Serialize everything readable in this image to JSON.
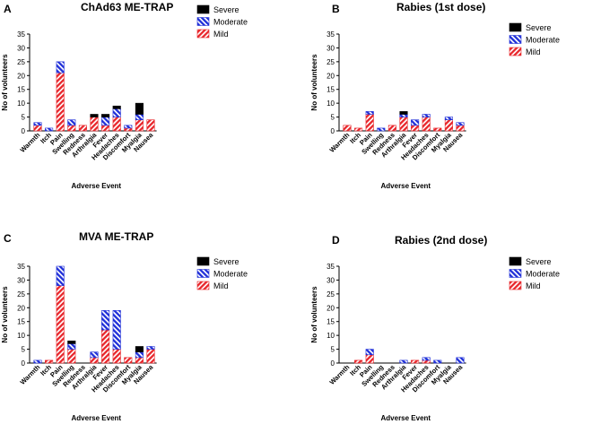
{
  "colors": {
    "severe": "#000000",
    "moderate": "#1f2fd8",
    "mild": "#e8262b",
    "axis": "#000000"
  },
  "chart_data": [
    {
      "type": "bar",
      "stacked": true,
      "panel_letter": "A",
      "title": "ChAd63 ME-TRAP",
      "xlabel": "Adverse Event",
      "ylabel": "No of volunteers",
      "ylim": [
        0,
        35
      ],
      "ticks": [
        0,
        5,
        10,
        15,
        20,
        25,
        30,
        35
      ],
      "categories": [
        "Warmth",
        "Itch",
        "Pain",
        "Swelling",
        "Redness",
        "Arthralgia",
        "Fever",
        "Headaches",
        "Discomfort",
        "Myalgia",
        "Nausea"
      ],
      "series": [
        {
          "name": "Mild",
          "pattern": "diag-red",
          "values": [
            2,
            0,
            21,
            2,
            2,
            5,
            2,
            5,
            1,
            4,
            4
          ]
        },
        {
          "name": "Moderate",
          "pattern": "diag-blue",
          "values": [
            1,
            1,
            4,
            2,
            0,
            0,
            3,
            3,
            1,
            2,
            0
          ]
        },
        {
          "name": "Severe",
          "pattern": "black",
          "values": [
            0,
            0,
            0,
            0,
            0,
            1,
            1,
            1,
            0,
            4,
            0
          ]
        }
      ],
      "legend": [
        "Severe",
        "Moderate",
        "Mild"
      ]
    },
    {
      "type": "bar",
      "stacked": true,
      "panel_letter": "B",
      "title": "Rabies (1st dose)",
      "xlabel": "Adverse Event",
      "ylabel": "No of volunteers",
      "ylim": [
        0,
        35
      ],
      "ticks": [
        0,
        5,
        10,
        15,
        20,
        25,
        30,
        35
      ],
      "categories": [
        "Warmth",
        "Itch",
        "Pain",
        "Swelling",
        "Redness",
        "Arthralgia",
        "Fever",
        "Headaches",
        "Discomfort",
        "Myalgia",
        "Nausea"
      ],
      "series": [
        {
          "name": "Mild",
          "pattern": "diag-red",
          "values": [
            2,
            1,
            6,
            0,
            2,
            5,
            2,
            5,
            1,
            4,
            2
          ]
        },
        {
          "name": "Moderate",
          "pattern": "diag-blue",
          "values": [
            0,
            0,
            1,
            1,
            0,
            1,
            2,
            1,
            0,
            1,
            1
          ]
        },
        {
          "name": "Severe",
          "pattern": "black",
          "values": [
            0,
            0,
            0,
            0,
            0,
            1,
            0,
            0,
            0,
            0,
            0
          ]
        }
      ],
      "legend": [
        "Severe",
        "Moderate",
        "Mild"
      ]
    },
    {
      "type": "bar",
      "stacked": true,
      "panel_letter": "C",
      "title": "MVA ME-TRAP",
      "xlabel": "Adverse Event",
      "ylabel": "No of volunteers",
      "ylim": [
        0,
        35
      ],
      "ticks": [
        0,
        5,
        10,
        15,
        20,
        25,
        30,
        35
      ],
      "categories": [
        "Warmth",
        "Itch",
        "Pain",
        "Swelling",
        "Redness",
        "Arthralgia",
        "Fever",
        "Headaches",
        "Discomfort",
        "Myalgia",
        "Nausea"
      ],
      "series": [
        {
          "name": "Mild",
          "pattern": "diag-red",
          "values": [
            0,
            1,
            28,
            5,
            0,
            2,
            12,
            5,
            2,
            2,
            5
          ]
        },
        {
          "name": "Moderate",
          "pattern": "diag-blue",
          "values": [
            1,
            0,
            7,
            2,
            0,
            2,
            7,
            14,
            0,
            2,
            1
          ]
        },
        {
          "name": "Severe",
          "pattern": "black",
          "values": [
            0,
            0,
            0,
            1,
            0,
            0,
            0,
            0,
            0,
            2,
            0
          ]
        }
      ],
      "legend": [
        "Severe",
        "Moderate",
        "Mild"
      ]
    },
    {
      "type": "bar",
      "stacked": true,
      "panel_letter": "D",
      "title": "Rabies (2nd dose)",
      "xlabel": "Adverse Event",
      "ylabel": "No of volunteers",
      "ylim": [
        0,
        35
      ],
      "ticks": [
        0,
        5,
        10,
        15,
        20,
        25,
        30,
        35
      ],
      "categories": [
        "Warmth",
        "Itch",
        "Pain",
        "Swelling",
        "Redness",
        "Arthralgia",
        "Fever",
        "Headaches",
        "Discomfort",
        "Myalgia",
        "Nausea"
      ],
      "series": [
        {
          "name": "Mild",
          "pattern": "diag-red",
          "values": [
            0,
            1,
            3,
            0,
            0,
            0,
            1,
            1,
            0,
            0,
            0
          ]
        },
        {
          "name": "Moderate",
          "pattern": "diag-blue",
          "values": [
            0,
            0,
            2,
            0,
            0,
            1,
            0,
            1,
            1,
            0,
            2
          ]
        },
        {
          "name": "Severe",
          "pattern": "black",
          "values": [
            0,
            0,
            0,
            0,
            0,
            0,
            0,
            0,
            0,
            0,
            0
          ]
        }
      ],
      "legend": [
        "Severe",
        "Moderate",
        "Mild"
      ]
    }
  ]
}
